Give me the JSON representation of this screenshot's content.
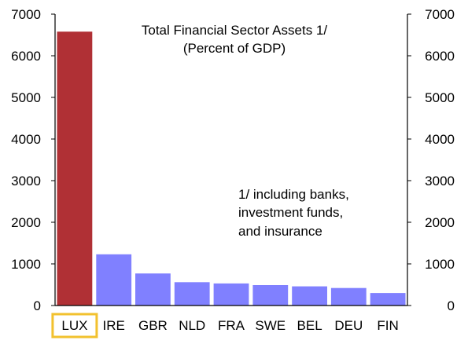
{
  "chart_data": {
    "type": "bar",
    "title": [
      "Total Financial Sector Assets 1/",
      "(Percent of GDP)"
    ],
    "categories": [
      "LUX",
      "IRE",
      "GBR",
      "NLD",
      "FRA",
      "SWE",
      "BEL",
      "DEU",
      "FIN"
    ],
    "values": [
      6580,
      1230,
      770,
      560,
      530,
      490,
      460,
      420,
      300
    ],
    "bar_colors": [
      "#b03035",
      "#8080ff",
      "#8080ff",
      "#8080ff",
      "#8080ff",
      "#8080ff",
      "#8080ff",
      "#8080ff",
      "#8080ff"
    ],
    "highlight_category": "LUX",
    "highlight_color": "#f2c12e",
    "ylim": [
      0,
      7000
    ],
    "yticks": [
      0,
      1000,
      2000,
      3000,
      4000,
      5000,
      6000,
      7000
    ],
    "ytick_labels": [
      "0",
      "1000",
      "2000",
      "3000",
      "4000",
      "5000",
      "6000",
      "7000"
    ],
    "secondary_axis": true,
    "grid": false,
    "xlabel": "",
    "ylabel": "",
    "annotation": [
      "1/ including banks,",
      "investment funds,",
      "and insurance"
    ]
  }
}
